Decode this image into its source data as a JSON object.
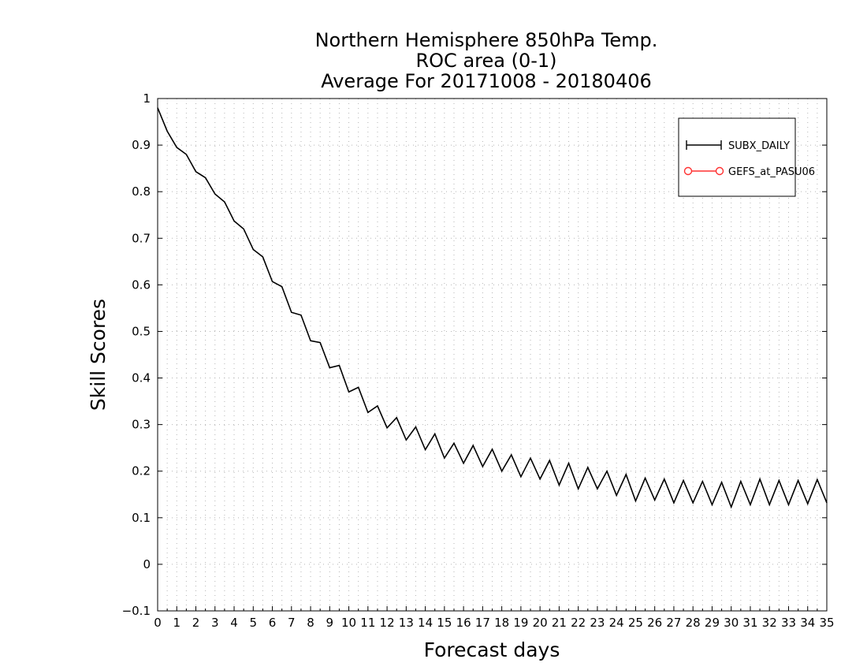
{
  "chart_data": {
    "type": "line",
    "title": [
      "Northern Hemisphere 850hPa Temp.",
      "ROC area (0-1)",
      "Average For 20171008 - 20180406"
    ],
    "xlabel": "Forecast days",
    "ylabel": "Skill Scores",
    "xlim": [
      0,
      35
    ],
    "ylim": [
      -0.1,
      1
    ],
    "x_ticks": [
      0,
      1,
      2,
      3,
      4,
      5,
      6,
      7,
      8,
      9,
      10,
      11,
      12,
      13,
      14,
      15,
      16,
      17,
      18,
      19,
      20,
      21,
      22,
      23,
      24,
      25,
      26,
      27,
      28,
      29,
      30,
      31,
      32,
      33,
      34,
      35
    ],
    "y_ticks": [
      -0.1,
      0,
      0.1,
      0.2,
      0.3,
      0.4,
      0.5,
      0.6,
      0.7,
      0.8,
      0.9,
      1
    ],
    "y_tick_labels": [
      "−0.1",
      "0",
      "0.1",
      "0.2",
      "0.3",
      "0.4",
      "0.5",
      "0.6",
      "0.7",
      "0.8",
      "0.9",
      "1"
    ],
    "grid": true,
    "legend_position": "top-right",
    "series": [
      {
        "name": "SUBX_DAILY",
        "color": "#000000",
        "marker": "plus",
        "x": [
          0,
          0.5,
          1,
          1.5,
          2,
          2.5,
          3,
          3.5,
          4,
          4.5,
          5,
          5.5,
          6,
          6.5,
          7,
          7.5,
          8,
          8.5,
          9,
          9.5,
          10,
          10.5,
          11,
          11.5,
          12,
          12.5,
          13,
          13.5,
          14,
          14.5,
          15,
          15.5,
          16,
          16.5,
          17,
          17.5,
          18,
          18.5,
          19,
          19.5,
          20,
          20.5,
          21,
          21.5,
          22,
          22.5,
          23,
          23.5,
          24,
          24.5,
          25,
          25.5,
          26,
          26.5,
          27,
          27.5,
          28,
          28.5,
          29,
          29.5,
          30,
          30.5,
          31,
          31.5,
          32,
          32.5,
          33,
          33.5,
          34,
          34.5,
          35
        ],
        "values": [
          0.98,
          0.93,
          0.895,
          0.88,
          0.843,
          0.83,
          0.795,
          0.778,
          0.737,
          0.72,
          0.676,
          0.66,
          0.607,
          0.596,
          0.541,
          0.535,
          0.48,
          0.476,
          0.422,
          0.427,
          0.37,
          0.38,
          0.326,
          0.34,
          0.293,
          0.315,
          0.267,
          0.295,
          0.246,
          0.28,
          0.228,
          0.26,
          0.217,
          0.255,
          0.21,
          0.247,
          0.2,
          0.235,
          0.188,
          0.228,
          0.183,
          0.223,
          0.17,
          0.217,
          0.162,
          0.208,
          0.162,
          0.2,
          0.148,
          0.193,
          0.136,
          0.185,
          0.138,
          0.183,
          0.132,
          0.18,
          0.132,
          0.178,
          0.128,
          0.176,
          0.123,
          0.178,
          0.128,
          0.183,
          0.128,
          0.18,
          0.128,
          0.18,
          0.13,
          0.182,
          0.132
        ]
      },
      {
        "name": "GEFS_at_PASU06",
        "color": "#ff3030",
        "marker": "circle",
        "x": [],
        "values": []
      }
    ]
  }
}
